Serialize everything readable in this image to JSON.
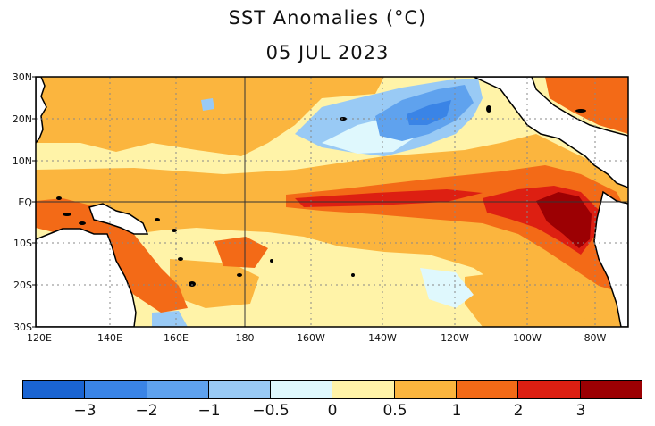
{
  "title": "SST Anomalies (°C)",
  "date": "05 JUL 2023",
  "lat_labels": [
    "30N",
    "20N",
    "10N",
    "EQ",
    "10S",
    "20S",
    "30S"
  ],
  "lon_labels": [
    "120E",
    "140E",
    "160E",
    "180",
    "160W",
    "140W",
    "120W",
    "100W",
    "80W"
  ],
  "colorbar": {
    "colors": [
      "#1a64d2",
      "#3a84e6",
      "#5fa2ee",
      "#99caf5",
      "#dff8fd",
      "#fff3a8",
      "#fbb53e",
      "#f36a17",
      "#dd1f12",
      "#9c0003"
    ],
    "tick_labels": [
      "−3",
      "−2",
      "−1",
      "−0.5",
      "0",
      "0.5",
      "1",
      "2",
      "3"
    ]
  },
  "map": {
    "land_color": "#ffffff",
    "coast_color": "#000000",
    "grid": "dotted"
  }
}
